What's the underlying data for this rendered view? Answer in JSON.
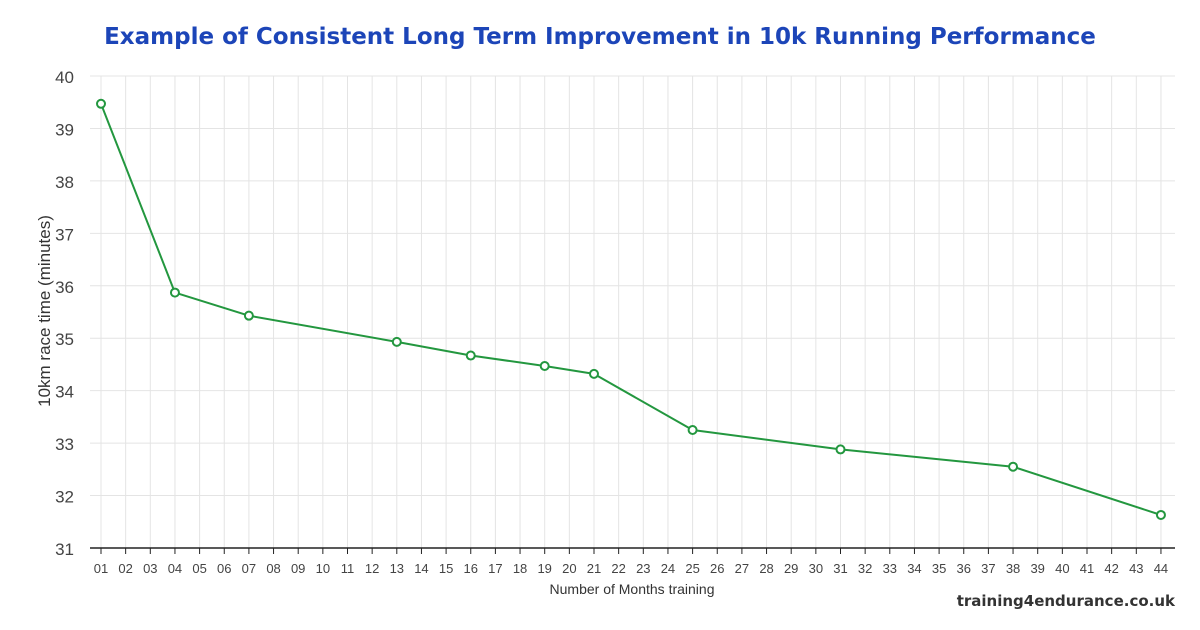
{
  "chart_data": {
    "type": "line",
    "title": "Example of Consistent Long Term Improvement in 10k Running Performance",
    "xlabel": "Number of Months training",
    "ylabel": "10km race time (minutes)",
    "categories": [
      "01",
      "02",
      "03",
      "04",
      "05",
      "06",
      "07",
      "08",
      "09",
      "10",
      "11",
      "12",
      "13",
      "14",
      "15",
      "16",
      "17",
      "18",
      "19",
      "20",
      "21",
      "22",
      "23",
      "24",
      "25",
      "26",
      "27",
      "28",
      "29",
      "30",
      "31",
      "32",
      "33",
      "34",
      "35",
      "36",
      "37",
      "38",
      "39",
      "40",
      "41",
      "42",
      "43",
      "44"
    ],
    "ylim": [
      31,
      40
    ],
    "yticks": [
      "31",
      "32",
      "33",
      "34",
      "35",
      "36",
      "37",
      "38",
      "39",
      "40"
    ],
    "grid": true,
    "series": [
      {
        "points": [
          {
            "x": "01",
            "y": 39.47
          },
          {
            "x": "04",
            "y": 35.87
          },
          {
            "x": "07",
            "y": 35.43
          },
          {
            "x": "13",
            "y": 34.93
          },
          {
            "x": "16",
            "y": 34.67
          },
          {
            "x": "19",
            "y": 34.47
          },
          {
            "x": "21",
            "y": 34.32
          },
          {
            "x": "25",
            "y": 33.25
          },
          {
            "x": "31",
            "y": 32.88
          },
          {
            "x": "38",
            "y": 32.55
          },
          {
            "x": "44",
            "y": 31.63
          }
        ]
      }
    ]
  },
  "footer": {
    "credit": "training4endurance.co.uk"
  },
  "colors": {
    "title": "#1c45b8",
    "line": "#23973f",
    "grid": "#e4e4e4",
    "axis": "#222222"
  }
}
